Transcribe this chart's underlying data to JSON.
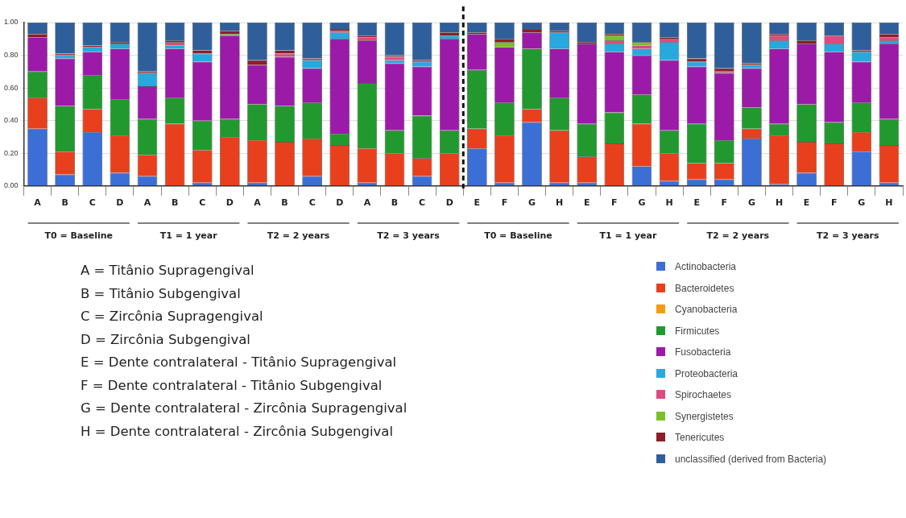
{
  "chart_data": {
    "type": "bar",
    "stacked": true,
    "categories": [
      "A",
      "B",
      "C",
      "D",
      "A",
      "B",
      "C",
      "D",
      "A",
      "B",
      "C",
      "D",
      "A",
      "B",
      "C",
      "D",
      "E",
      "F",
      "G",
      "H",
      "E",
      "F",
      "G",
      "H",
      "E",
      "F",
      "G",
      "H",
      "E",
      "F",
      "G",
      "H"
    ],
    "series": [
      {
        "name": "Actinobacteria",
        "color": "#3b6fd6",
        "values": [
          0.35,
          0.07,
          0.33,
          0.08,
          0.06,
          0,
          0.02,
          0,
          0.02,
          0,
          0.06,
          0,
          0.02,
          0,
          0.06,
          0,
          0.23,
          0.02,
          0.39,
          0.02,
          0.02,
          0,
          0.12,
          0.03,
          0.04,
          0.04,
          0.29,
          0.01,
          0.08,
          0,
          0.21,
          0.02
        ]
      },
      {
        "name": "Bacteroidetes",
        "color": "#e8401c",
        "values": [
          0.19,
          0.14,
          0.14,
          0.23,
          0.13,
          0.38,
          0.2,
          0.3,
          0.26,
          0.27,
          0.23,
          0.25,
          0.21,
          0.2,
          0.11,
          0.2,
          0.12,
          0.29,
          0.08,
          0.32,
          0.16,
          0.26,
          0.26,
          0.17,
          0.1,
          0.1,
          0.06,
          0.3,
          0.19,
          0.26,
          0.12,
          0.23
        ]
      },
      {
        "name": "Cyanobacteria",
        "color": "#f39c12",
        "values": [
          0,
          0,
          0,
          0,
          0,
          0,
          0,
          0,
          0,
          0,
          0,
          0,
          0,
          0,
          0,
          0,
          0,
          0,
          0,
          0,
          0,
          0,
          0,
          0,
          0,
          0,
          0,
          0,
          0,
          0,
          0,
          0
        ]
      },
      {
        "name": "Firmicutes",
        "color": "#22992e",
        "values": [
          0.16,
          0.28,
          0.21,
          0.22,
          0.22,
          0.16,
          0.18,
          0.11,
          0.22,
          0.22,
          0.22,
          0.07,
          0.4,
          0.14,
          0.26,
          0.14,
          0.36,
          0.2,
          0.37,
          0.2,
          0.2,
          0.19,
          0.18,
          0.14,
          0.24,
          0.14,
          0.13,
          0.07,
          0.23,
          0.13,
          0.18,
          0.16
        ]
      },
      {
        "name": "Fusobacteria",
        "color": "#9b1ba8",
        "values": [
          0.21,
          0.29,
          0.14,
          0.31,
          0.2,
          0.3,
          0.36,
          0.51,
          0.24,
          0.3,
          0.21,
          0.58,
          0.26,
          0.41,
          0.3,
          0.56,
          0.22,
          0.34,
          0.1,
          0.3,
          0.49,
          0.37,
          0.24,
          0.43,
          0.35,
          0.41,
          0.24,
          0.46,
          0.37,
          0.43,
          0.25,
          0.46
        ]
      },
      {
        "name": "Proteobacteria",
        "color": "#28a8dc",
        "values": [
          0,
          0.02,
          0.03,
          0.03,
          0.08,
          0.02,
          0.05,
          0,
          0,
          0,
          0.05,
          0.04,
          0,
          0.02,
          0.03,
          0.02,
          0,
          0,
          0,
          0.1,
          0,
          0.05,
          0.04,
          0.11,
          0.03,
          0,
          0.02,
          0.05,
          0,
          0.05,
          0.06,
          0.02
        ]
      },
      {
        "name": "Spirochaetes",
        "color": "#e04a80",
        "values": [
          0,
          0,
          0,
          0,
          0,
          0.02,
          0,
          0,
          0,
          0.02,
          0,
          0.01,
          0.02,
          0.02,
          0,
          0,
          0,
          0,
          0,
          0,
          0,
          0.02,
          0.02,
          0.02,
          0,
          0.01,
          0,
          0.03,
          0,
          0.05,
          0,
          0.02
        ]
      },
      {
        "name": "Synergistetes",
        "color": "#7cbf2a",
        "values": [
          0,
          0,
          0,
          0,
          0,
          0,
          0,
          0.01,
          0,
          0,
          0,
          0,
          0,
          0,
          0,
          0,
          0,
          0.03,
          0,
          0,
          0,
          0.03,
          0.02,
          0,
          0,
          0,
          0,
          0,
          0,
          0,
          0,
          0
        ]
      },
      {
        "name": "Tenericutes",
        "color": "#8a1f2a",
        "values": [
          0.02,
          0.01,
          0.01,
          0.01,
          0.01,
          0.01,
          0.02,
          0.02,
          0.03,
          0.02,
          0.01,
          0.01,
          0.01,
          0.01,
          0.01,
          0.02,
          0.01,
          0.02,
          0.02,
          0.01,
          0.01,
          0.01,
          0,
          0.01,
          0.02,
          0.02,
          0.01,
          0.01,
          0.02,
          0,
          0.01,
          0.02
        ]
      },
      {
        "name": "unclassified (derived from Bacteria)",
        "color": "#2f5f9a",
        "values": [
          0.07,
          0.19,
          0.14,
          0.12,
          0.3,
          0.11,
          0.17,
          0.05,
          0.23,
          0.17,
          0.22,
          0.04,
          0.08,
          0.2,
          0.23,
          0.06,
          0.06,
          0.1,
          0.04,
          0.05,
          0.12,
          0.07,
          0.12,
          0.09,
          0.22,
          0.28,
          0.25,
          0.07,
          0.11,
          0.08,
          0.17,
          0.07
        ]
      }
    ],
    "ylim": [
      0,
      1
    ],
    "yticks": [
      {
        "value": 0,
        "label": "0.00"
      },
      {
        "value": 0.2,
        "label": "0.20"
      },
      {
        "value": 0.4,
        "label": "0.40"
      },
      {
        "value": 0.6,
        "label": "0.60"
      },
      {
        "value": 0.8,
        "label": "0.80"
      },
      {
        "value": 1,
        "label": "1.00"
      }
    ],
    "grid": "y",
    "legend": "bottom right",
    "annotations": [
      "T0 = Baseline",
      "T1 = 1 year",
      "T2 = 2 years",
      "T2 = 3 years",
      "T0 = Baseline",
      "T1 = 1 year",
      "T2 = 2 years",
      "T2 = 3 years",
      "A = Titânio Supragengival",
      "B = Titânio Subgengival",
      "C = Zircônia Supragengival",
      "D = Zircônia Subgengival",
      "E = Dente contralateral - Titânio Supragengival",
      "F = Dente contralateral - Titânio Subgengival",
      "G = Dente contralateral - Zircônia Supragengival",
      "H = Dente contralateral - Zircônia Subgengival"
    ]
  }
}
